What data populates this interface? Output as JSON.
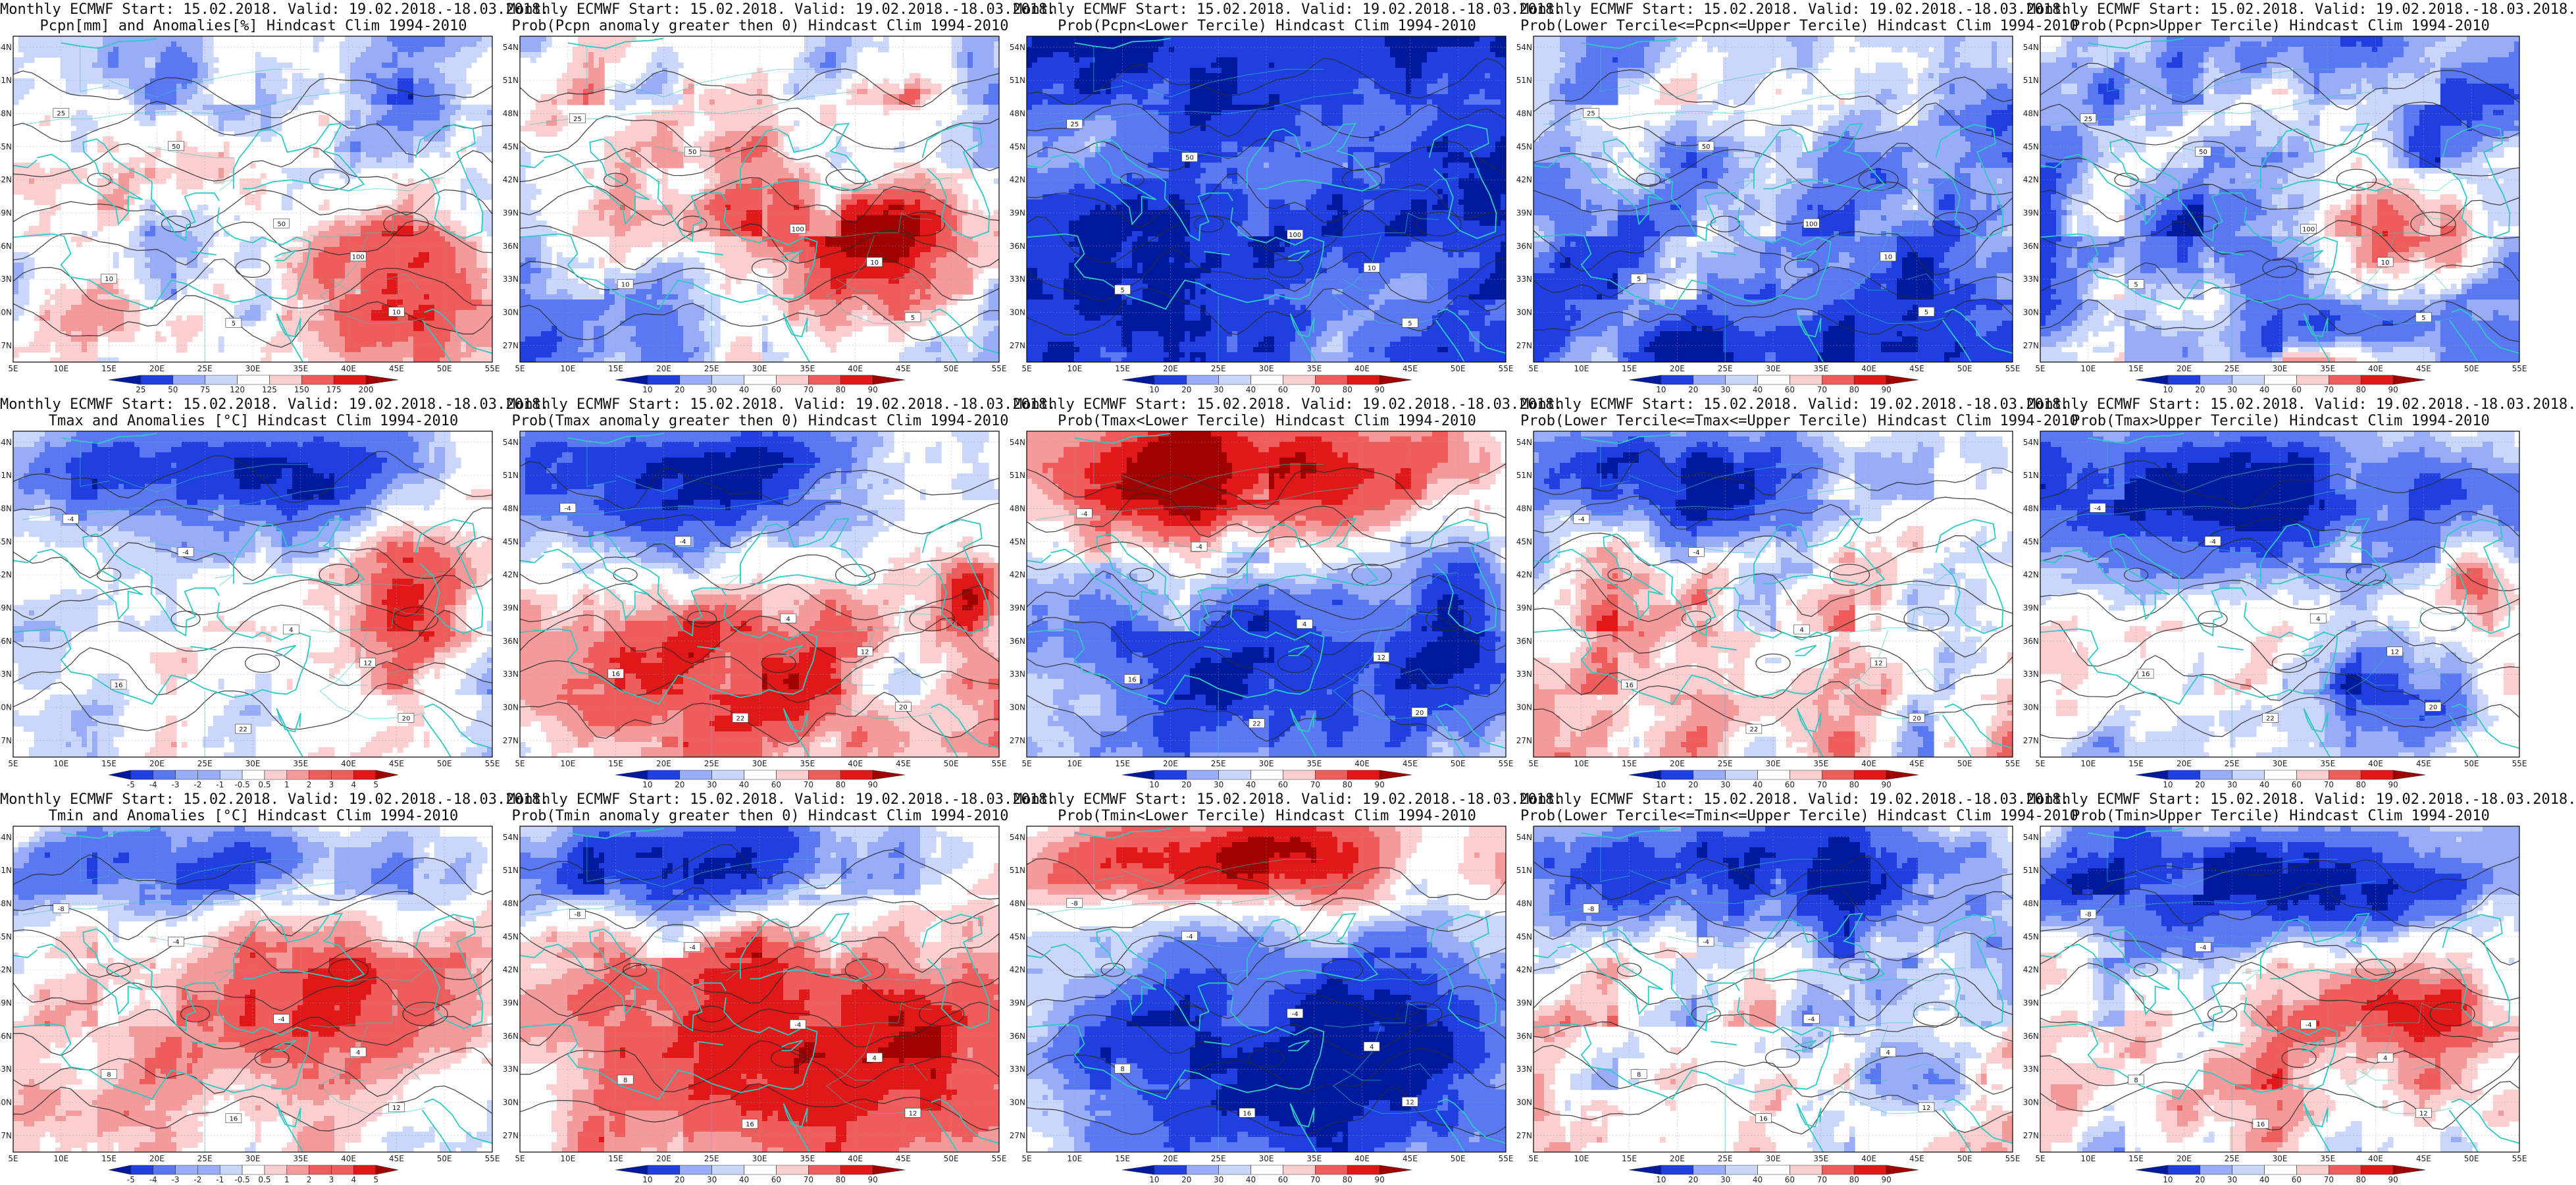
{
  "axes": {
    "lat_labels": [
      "54N",
      "51N",
      "48N",
      "45N",
      "42N",
      "39N",
      "36N",
      "33N",
      "30N",
      "27N"
    ],
    "lon_labels": [
      "5E",
      "10E",
      "15E",
      "20E",
      "25E",
      "30E",
      "35E",
      "40E",
      "45E",
      "50E",
      "55E"
    ]
  },
  "colors": {
    "coast": "#2ec9c4",
    "contour": "#2b2b2b",
    "frame": "#000000",
    "blue_scale": [
      "#001a9e",
      "#1f3fe0",
      "#5a78f2",
      "#98acf7",
      "#cbd6fb"
    ],
    "red_scale": [
      "#fbcfcf",
      "#f59a9a",
      "#ef5c5c",
      "#e01818",
      "#a00000"
    ]
  },
  "panels": [
    {
      "title_line1": "Monthly ECMWF Start: 15.02.2018. Valid: 19.02.2018.-18.03.2018.",
      "title_line2": "Pcpn[mm] and Anomalies[%] Hindcast Clim 1994-2010",
      "scheme": "pcpn_anom",
      "colorbar_labels": [
        "25",
        "50",
        "75",
        "120",
        "125",
        "150",
        "175",
        "200"
      ],
      "contour_labels": [
        "25",
        "50",
        "50",
        "100",
        "10",
        "10",
        "5"
      ]
    },
    {
      "title_line1": "Monthly ECMWF Start: 15.02.2018. Valid: 19.02.2018.-18.03.2018.",
      "title_line2": "Prob(Pcpn anomaly greater then 0) Hindcast Clim 1994-2010",
      "scheme": "pcpn_pos",
      "colorbar_labels": [
        "10",
        "20",
        "30",
        "40",
        "60",
        "70",
        "80",
        "90"
      ],
      "contour_labels": [
        "25",
        "50",
        "100",
        "10",
        "10",
        "5"
      ]
    },
    {
      "title_line1": "Monthly ECMWF Start: 15.02.2018. Valid: 19.02.2018.-18.03.2018.",
      "title_line2": "Prob(Pcpn<Lower Tercile) Hindcast Clim 1994-2010",
      "scheme": "pcpn_lower",
      "colorbar_labels": [
        "10",
        "20",
        "30",
        "40",
        "60",
        "70",
        "80",
        "90"
      ],
      "contour_labels": [
        "25",
        "50",
        "100",
        "10",
        "5",
        "5"
      ]
    },
    {
      "title_line1": "Monthly ECMWF Start: 15.02.2018. Valid: 19.02.2018.-18.03.2018.",
      "title_line2": "Prob(Lower Tercile<=Pcpn<=Upper Tercile) Hindcast Clim 1994-2010",
      "scheme": "pcpn_mid",
      "colorbar_labels": [
        "10",
        "20",
        "30",
        "40",
        "60",
        "70",
        "80",
        "90"
      ],
      "contour_labels": [
        "25",
        "50",
        "100",
        "10",
        "5",
        "5"
      ]
    },
    {
      "title_line1": "Monthly ECMWF Start: 15.02.2018. Valid: 19.02.2018.-18.03.2018.",
      "title_line2": "Prob(Pcpn>Upper Tercile) Hindcast Clim 1994-2010",
      "scheme": "pcpn_upper",
      "colorbar_labels": [
        "10",
        "20",
        "30",
        "40",
        "60",
        "70",
        "80",
        "90"
      ],
      "contour_labels": [
        "25",
        "50",
        "100",
        "10",
        "5",
        "5"
      ]
    },
    {
      "title_line1": "Monthly ECMWF Start: 15.02.2018. Valid: 19.02.2018.-18.03.2018.",
      "title_line2": "Tmax and Anomalies [°C] Hindcast Clim 1994-2010",
      "scheme": "tmax_anom",
      "colorbar_labels": [
        "-5",
        "-4",
        "-3",
        "-2",
        "-1",
        "-0.5",
        "0.5",
        "1",
        "2",
        "3",
        "4",
        "5"
      ],
      "contour_labels": [
        "-4",
        "-4",
        "4",
        "12",
        "16",
        "20",
        "22"
      ]
    },
    {
      "title_line1": "Monthly ECMWF Start: 15.02.2018. Valid: 19.02.2018.-18.03.2018.",
      "title_line2": "Prob(Tmax anomaly greater then 0) Hindcast Clim 1994-2010",
      "scheme": "tmax_pos",
      "colorbar_labels": [
        "10",
        "20",
        "30",
        "40",
        "60",
        "70",
        "80",
        "90"
      ],
      "contour_labels": [
        "-4",
        "-4",
        "4",
        "12",
        "16",
        "20",
        "22"
      ]
    },
    {
      "title_line1": "Monthly ECMWF Start: 15.02.2018. Valid: 19.02.2018.-18.03.2018.",
      "title_line2": "Prob(Tmax<Lower Tercile) Hindcast Clim 1994-2010",
      "scheme": "tmax_lower",
      "colorbar_labels": [
        "10",
        "20",
        "30",
        "40",
        "60",
        "70",
        "80",
        "90"
      ],
      "contour_labels": [
        "-4",
        "-4",
        "4",
        "12",
        "16",
        "20",
        "22"
      ]
    },
    {
      "title_line1": "Monthly ECMWF Start: 15.02.2018. Valid: 19.02.2018.-18.03.2018.",
      "title_line2": "Prob(Lower Tercile<=Tmax<=Upper Tercile) Hindcast Clim 1994-2010",
      "scheme": "tmax_mid",
      "colorbar_labels": [
        "10",
        "20",
        "30",
        "40",
        "60",
        "70",
        "80",
        "90"
      ],
      "contour_labels": [
        "-4",
        "-4",
        "4",
        "12",
        "16",
        "20",
        "22"
      ]
    },
    {
      "title_line1": "Monthly ECMWF Start: 15.02.2018. Valid: 19.02.2018.-18.03.2018.",
      "title_line2": "Prob(Tmax>Upper Tercile) Hindcast Clim 1994-2010",
      "scheme": "tmax_upper",
      "colorbar_labels": [
        "10",
        "20",
        "30",
        "40",
        "60",
        "70",
        "80",
        "90"
      ],
      "contour_labels": [
        "-4",
        "-4",
        "4",
        "12",
        "16",
        "20",
        "22"
      ]
    },
    {
      "title_line1": "Monthly ECMWF Start: 15.02.2018. Valid: 19.02.2018.-18.03.2018.",
      "title_line2": "Tmin and Anomalies [°C] Hindcast Clim 1994-2010",
      "scheme": "tmin_anom",
      "colorbar_labels": [
        "-5",
        "-4",
        "-3",
        "-2",
        "-1",
        "-0.5",
        "0.5",
        "1",
        "2",
        "3",
        "4",
        "5"
      ],
      "contour_labels": [
        "-8",
        "-4",
        "-4",
        "4",
        "8",
        "12",
        "16"
      ]
    },
    {
      "title_line1": "Monthly ECMWF Start: 15.02.2018. Valid: 19.02.2018.-18.03.2018.",
      "title_line2": "Prob(Tmin anomaly greater then 0) Hindcast Clim 1994-2010",
      "scheme": "tmin_pos",
      "colorbar_labels": [
        "10",
        "20",
        "30",
        "40",
        "60",
        "70",
        "80",
        "90"
      ],
      "contour_labels": [
        "-8",
        "-4",
        "-4",
        "4",
        "8",
        "12",
        "16"
      ]
    },
    {
      "title_line1": "Monthly ECMWF Start: 15.02.2018. Valid: 19.02.2018.-18.03.2018.",
      "title_line2": "Prob(Tmin<Lower Tercile) Hindcast Clim 1994-2010",
      "scheme": "tmin_lower",
      "colorbar_labels": [
        "10",
        "20",
        "30",
        "40",
        "60",
        "70",
        "80",
        "90"
      ],
      "contour_labels": [
        "-8",
        "-4",
        "-4",
        "4",
        "8",
        "12",
        "16"
      ]
    },
    {
      "title_line1": "Monthly ECMWF Start: 15.02.2018. Valid: 19.02.2018.-18.03.2018.",
      "title_line2": "Prob(Lower Tercile<=Tmin<=Upper Tercile) Hindcast Clim 1994-2010",
      "scheme": "tmin_mid",
      "colorbar_labels": [
        "10",
        "20",
        "30",
        "40",
        "60",
        "70",
        "80",
        "90"
      ],
      "contour_labels": [
        "-8",
        "-4",
        "-4",
        "4",
        "8",
        "12",
        "16"
      ]
    },
    {
      "title_line1": "Monthly ECMWF Start: 15.02.2018. Valid: 19.02.2018.-18.03.2018.",
      "title_line2": "Prob(Tmin>Upper Tercile) Hindcast Clim 1994-2010",
      "scheme": "tmin_upper",
      "colorbar_labels": [
        "10",
        "20",
        "30",
        "40",
        "60",
        "70",
        "80",
        "90"
      ],
      "contour_labels": [
        "-8",
        "-4",
        "-4",
        "4",
        "8",
        "12",
        "16"
      ]
    }
  ]
}
